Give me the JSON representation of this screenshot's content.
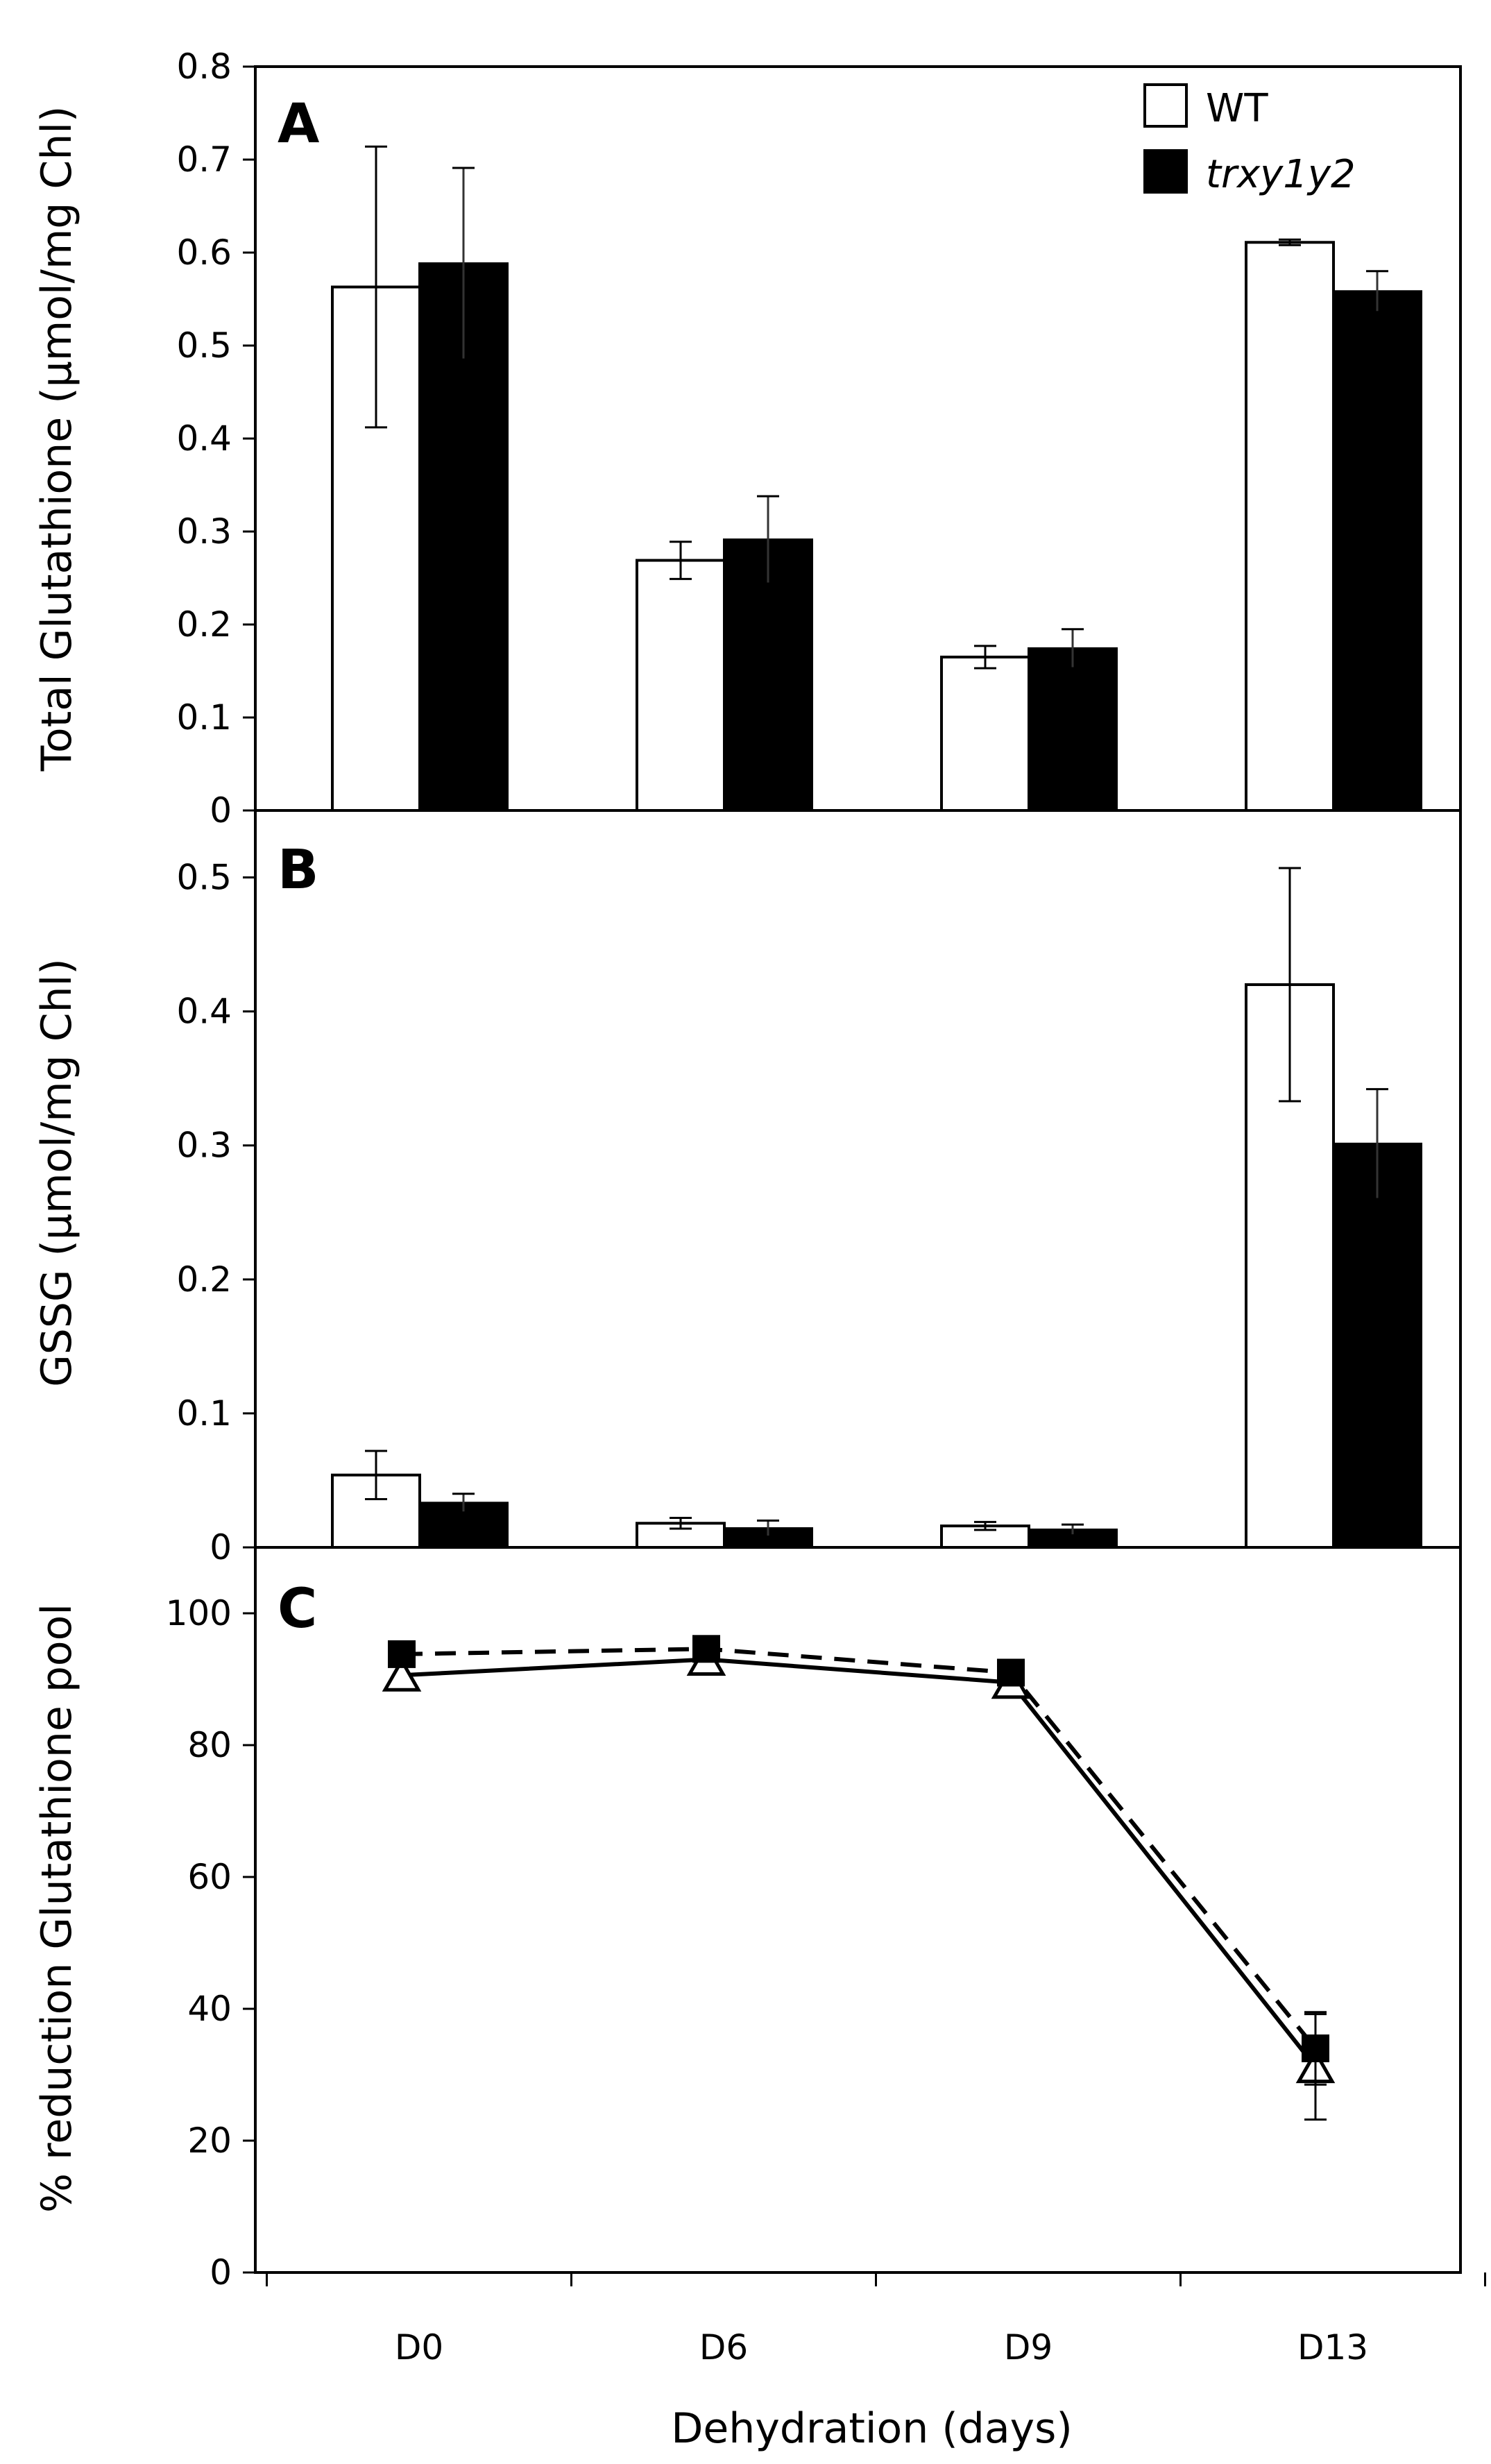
{
  "chart_data": [
    {
      "type": "bar",
      "panel_label": "A",
      "title": "",
      "xlabel": "",
      "ylabel": "Total Glutathione (µmol/mg Chl)",
      "categories": [
        "D0",
        "D6",
        "D9",
        "D13"
      ],
      "ylim": [
        0,
        0.8
      ],
      "yticks": [
        0,
        0.1,
        0.2,
        0.3,
        0.4,
        0.5,
        0.6,
        0.7,
        0.8
      ],
      "ytick_labels": [
        "0",
        "0.1",
        "0.2",
        "0.3",
        "0.4",
        "0.5",
        "0.6",
        "0.7",
        "0.8"
      ],
      "series": [
        {
          "name": "WT",
          "fill": "#ffffff",
          "values": [
            0.563,
            0.269,
            0.165,
            0.611
          ],
          "errors": [
            0.151,
            0.02,
            0.012,
            0.003
          ]
        },
        {
          "name": "trxy1y2",
          "fill": "#000000",
          "values": [
            0.588,
            0.291,
            0.174,
            0.558
          ],
          "errors": [
            0.103,
            0.047,
            0.021,
            0.022
          ]
        }
      ],
      "legend": {
        "position": "top-right",
        "entries": [
          "WT",
          "trxy1y2"
        ]
      }
    },
    {
      "type": "bar",
      "panel_label": "B",
      "title": "",
      "xlabel": "",
      "ylabel": "GSSG (µmol/mg Chl)",
      "categories": [
        "D0",
        "D6",
        "D9",
        "D13"
      ],
      "ylim": [
        0,
        0.55
      ],
      "yticks": [
        0,
        0.1,
        0.2,
        0.3,
        0.4,
        0.5
      ],
      "ytick_labels": [
        "0",
        "0.1",
        "0.2",
        "0.3",
        "0.4",
        "0.5"
      ],
      "series": [
        {
          "name": "WT",
          "fill": "#ffffff",
          "values": [
            0.054,
            0.018,
            0.016,
            0.42
          ],
          "errors": [
            0.018,
            0.004,
            0.003,
            0.087
          ]
        },
        {
          "name": "trxy1y2",
          "fill": "#000000",
          "values": [
            0.033,
            0.014,
            0.013,
            0.301
          ],
          "errors": [
            0.007,
            0.006,
            0.004,
            0.041
          ]
        }
      ]
    },
    {
      "type": "line",
      "panel_label": "C",
      "title": "",
      "xlabel": "Dehydration (days)",
      "ylabel": "% reduction Glutathione pool",
      "categories": [
        "D0",
        "D6",
        "D9",
        "D13"
      ],
      "ylim": [
        0,
        110
      ],
      "yticks": [
        0,
        20,
        40,
        60,
        80,
        100
      ],
      "ytick_labels": [
        "0",
        "20",
        "40",
        "60",
        "80",
        "100"
      ],
      "series": [
        {
          "name": "WT",
          "marker": "open-triangle",
          "line": "solid",
          "values": [
            90.6,
            93.0,
            89.5,
            31.2
          ],
          "errors": [
            1.5,
            1.5,
            1.0,
            8.0
          ]
        },
        {
          "name": "trxy1y2",
          "marker": "filled-square",
          "line": "dashed",
          "values": [
            93.8,
            94.6,
            91.0,
            34.0
          ],
          "errors": [
            1.0,
            1.0,
            1.0,
            5.5
          ]
        }
      ]
    }
  ]
}
